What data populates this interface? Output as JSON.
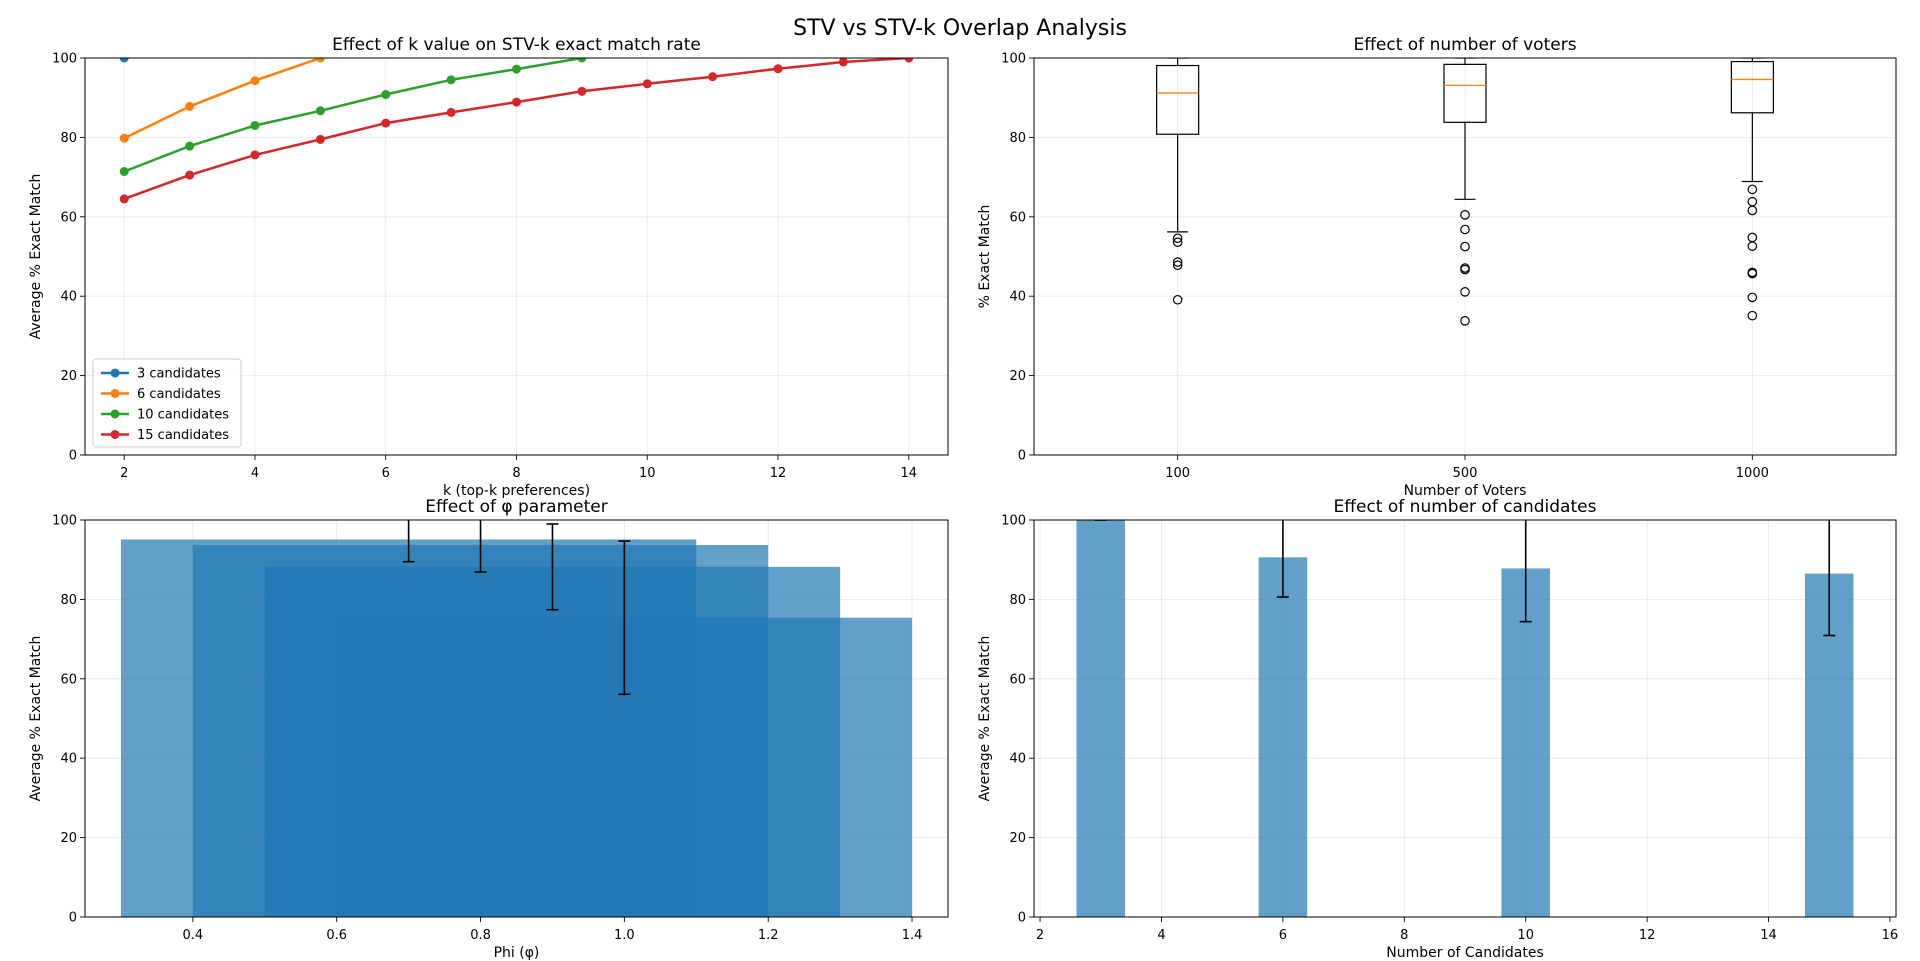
{
  "figure": {
    "suptitle": "STV vs STV-k Overlap Analysis"
  },
  "chart_data": [
    {
      "type": "line",
      "title": "Effect of k value on STV-k exact match rate",
      "xlabel": "k (top-k preferences)",
      "ylabel": "Average % Exact Match",
      "xlim": [
        1.4,
        14.6
      ],
      "ylim": [
        0,
        100
      ],
      "xticks": [
        2,
        4,
        6,
        8,
        10,
        12,
        14
      ],
      "yticks": [
        0,
        20,
        40,
        60,
        80,
        100
      ],
      "grid": true,
      "legend": "lower-left",
      "series": [
        {
          "name": "3 candidates",
          "color": "#1f77b4",
          "x": [
            2
          ],
          "y": [
            100
          ]
        },
        {
          "name": "6 candidates",
          "color": "#ff7f0e",
          "x": [
            2,
            3,
            4,
            5
          ],
          "y": [
            79.8,
            87.8,
            94.3,
            100
          ]
        },
        {
          "name": "10 candidates",
          "color": "#2ca02c",
          "x": [
            2,
            3,
            4,
            5,
            6,
            7,
            8,
            9
          ],
          "y": [
            71.4,
            77.8,
            83.0,
            86.7,
            90.8,
            94.5,
            97.2,
            100
          ]
        },
        {
          "name": "15 candidates",
          "color": "#d62728",
          "x": [
            2,
            3,
            4,
            5,
            6,
            7,
            8,
            9,
            10,
            11,
            12,
            13,
            14
          ],
          "y": [
            64.5,
            70.5,
            75.6,
            79.5,
            83.6,
            86.3,
            88.9,
            91.6,
            93.5,
            95.3,
            97.3,
            99.0,
            100
          ]
        }
      ]
    },
    {
      "type": "box",
      "title": "Effect of number of voters",
      "xlabel": "Number of Voters",
      "ylabel": "% Exact Match",
      "ylim": [
        0,
        100
      ],
      "yticks": [
        0,
        20,
        40,
        60,
        80,
        100
      ],
      "grid": true,
      "categories": [
        "100",
        "500",
        "1000"
      ],
      "boxes": [
        {
          "q1": 80.8,
          "median": 91.2,
          "q3": 98.1,
          "whislo": 56.2,
          "whishi": 100,
          "fliers": [
            54.6,
            53.6,
            48.6,
            47.8,
            39.1
          ]
        },
        {
          "q1": 83.8,
          "median": 93.1,
          "q3": 98.4,
          "whislo": 64.4,
          "whishi": 100,
          "fliers": [
            60.5,
            56.8,
            52.5,
            47.1,
            46.7,
            41.1,
            33.8
          ]
        },
        {
          "q1": 86.2,
          "median": 94.6,
          "q3": 99.1,
          "whislo": 68.9,
          "whishi": 100,
          "fliers": [
            66.9,
            63.8,
            61.6,
            54.8,
            52.6,
            46.0,
            45.7,
            39.7,
            35.1
          ]
        }
      ]
    },
    {
      "type": "bar",
      "title": "Effect of φ parameter",
      "xlabel": "Phi (φ)",
      "ylabel": "Average % Exact Match",
      "xlim": [
        0.25,
        1.45
      ],
      "ylim": [
        0,
        100
      ],
      "xticks": [
        "0.4",
        "0.6",
        "0.8",
        "1.0",
        "1.2",
        "1.4"
      ],
      "yticks": [
        0,
        20,
        40,
        60,
        80,
        100
      ],
      "grid": true,
      "x": [
        0.7,
        0.8,
        0.9,
        1.0
      ],
      "bar_width": 0.8,
      "values": [
        95.1,
        93.7,
        88.2,
        75.4
      ],
      "errors": [
        5.6,
        6.8,
        10.8,
        19.3
      ]
    },
    {
      "type": "bar",
      "title": "Effect of number of candidates",
      "xlabel": "Number of Candidates",
      "ylabel": "Average % Exact Match",
      "xlim": [
        1.9,
        16.1
      ],
      "ylim": [
        0,
        100
      ],
      "xticks": [
        2,
        4,
        6,
        8,
        10,
        12,
        14,
        16
      ],
      "yticks": [
        0,
        20,
        40,
        60,
        80,
        100
      ],
      "grid": true,
      "x": [
        3,
        6,
        10,
        15
      ],
      "bar_width": 0.8,
      "values": [
        100,
        90.6,
        87.8,
        86.5
      ],
      "errors": [
        0,
        10,
        13.4,
        15.6
      ]
    }
  ]
}
